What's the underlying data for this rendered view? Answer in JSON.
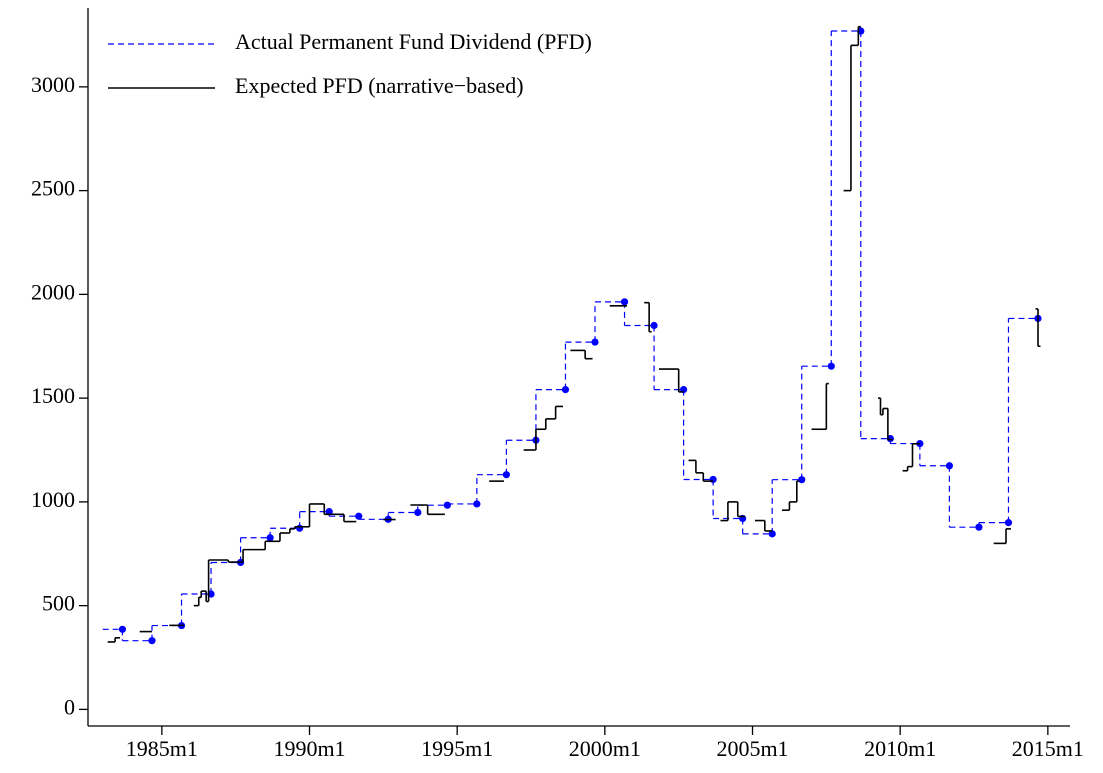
{
  "chart_data": {
    "type": "step",
    "xlim": [
      270,
      669
    ],
    "ylim": [
      -80,
      3380
    ],
    "xticks": [
      {
        "value": 300,
        "label": "1985m1"
      },
      {
        "value": 360,
        "label": "1990m1"
      },
      {
        "value": 420,
        "label": "1995m1"
      },
      {
        "value": 480,
        "label": "2000m1"
      },
      {
        "value": 540,
        "label": "2005m1"
      },
      {
        "value": 600,
        "label": "2010m1"
      },
      {
        "value": 660,
        "label": "2015m1"
      }
    ],
    "yticks": [
      0,
      500,
      1000,
      1500,
      2000,
      2500,
      3000
    ],
    "legend": "upper left",
    "series": [
      {
        "name": "Actual Permanent Fund Dividend (PFD)",
        "color": "#0000ff",
        "style": "dashed",
        "markers": true,
        "x": [
          284,
          296,
          308,
          320,
          332,
          344,
          356,
          368,
          380,
          392,
          404,
          416,
          428,
          440,
          452,
          464,
          476,
          488,
          500,
          512,
          524,
          536,
          548,
          560,
          572,
          584,
          596,
          608,
          620,
          632,
          644,
          656
        ],
        "values": [
          386,
          331,
          404,
          556,
          708,
          827,
          873,
          953,
          931,
          916,
          949,
          984,
          990,
          1131,
          1297,
          1541,
          1770,
          1964,
          1850,
          1541,
          1108,
          920,
          846,
          1107,
          1654,
          3269,
          1305,
          1281,
          1174,
          878,
          900,
          1884
        ]
      },
      {
        "name": "Expected PFD (narrative−based)",
        "color": "#000000",
        "style": "solid",
        "markers": false,
        "x": [
          278,
          281,
          283,
          291,
          296,
          303,
          309,
          313,
          315,
          316,
          318,
          319,
          327,
          333,
          342,
          348,
          352,
          354,
          360,
          366,
          374,
          379,
          390,
          395,
          401,
          408,
          415,
          433,
          439,
          447,
          452,
          456,
          460,
          463,
          466,
          472,
          475,
          482,
          489,
          496,
          498,
          499,
          502,
          510,
          512,
          514,
          517,
          520,
          524,
          527,
          530,
          534,
          537,
          541,
          545,
          548,
          552,
          555,
          558,
          559,
          564,
          570,
          571,
          577,
          580,
          583,
          584,
          591,
          592,
          593,
          595,
          597,
          601,
          603,
          605,
          608,
          638,
          643,
          645,
          655,
          656,
          657
        ],
        "values": [
          325,
          345,
          null,
          375,
          null,
          405,
          null,
          500,
          540,
          570,
          520,
          720,
          710,
          770,
          810,
          850,
          870,
          880,
          990,
          940,
          905,
          null,
          915,
          null,
          985,
          940,
          null,
          1100,
          null,
          1250,
          1350,
          1400,
          1460,
          null,
          1730,
          1690,
          null,
          1945,
          null,
          1960,
          1820,
          null,
          1640,
          1530,
          null,
          1200,
          1140,
          1100,
          null,
          910,
          1000,
          930,
          null,
          910,
          860,
          null,
          960,
          1000,
          1100,
          null,
          1350,
          1570,
          null,
          2500,
          3200,
          3290,
          null,
          1500,
          1420,
          1450,
          1300,
          null,
          1150,
          1170,
          1280,
          null,
          800,
          870,
          null,
          1930,
          1750,
          null
        ]
      }
    ]
  }
}
